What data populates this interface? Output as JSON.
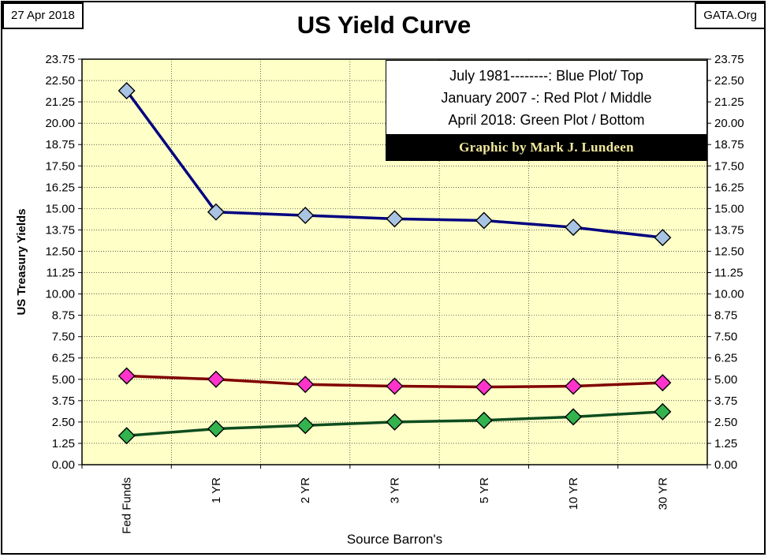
{
  "header": {
    "date": "27 Apr 2018",
    "source_site": "GATA.Org",
    "title": "US Yield Curve"
  },
  "legend": {
    "lines": [
      "July 1981--------: Blue Plot/ Top",
      "January 2007 -: Red Plot / Middle",
      "April 2018: Green Plot / Bottom"
    ],
    "credit": "Graphic by Mark J. Lundeen"
  },
  "chart_data": {
    "type": "line",
    "title": "US Yield Curve",
    "xlabel": "Source Barron's",
    "ylabel": "US Treasury Yields",
    "categories": [
      "Fed Funds",
      "1 YR",
      "2 YR",
      "3 YR",
      "5 YR",
      "10 YR",
      "30 YR"
    ],
    "ylim": [
      0,
      23.75
    ],
    "yticks": [
      "0.00",
      "1.25",
      "2.50",
      "3.75",
      "5.00",
      "6.25",
      "7.50",
      "8.75",
      "10.00",
      "11.25",
      "12.50",
      "13.75",
      "15.00",
      "16.25",
      "17.50",
      "18.75",
      "20.00",
      "21.25",
      "22.50",
      "23.75"
    ],
    "grid": true,
    "legend_position": "top-right",
    "plot_background": "#ffffc8",
    "series": [
      {
        "color": "#000080",
        "marker_color": "#a9c3e3",
        "values": [
          21.9,
          14.8,
          14.6,
          14.4,
          14.3,
          13.9,
          13.3
        ]
      },
      {
        "color": "#800000",
        "marker_color": "#ff33cc",
        "values": [
          5.2,
          5.0,
          4.7,
          4.6,
          4.55,
          4.6,
          4.8
        ]
      },
      {
        "color": "#0d4d1f",
        "marker_color": "#33b34d",
        "values": [
          1.7,
          2.1,
          2.3,
          2.5,
          2.6,
          2.8,
          3.1
        ]
      }
    ]
  }
}
